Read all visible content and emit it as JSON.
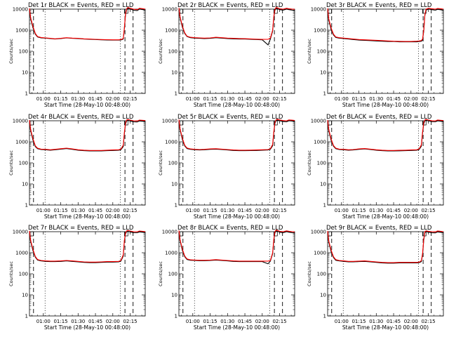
{
  "figure": {
    "xlabel": "Start Time (28-May-10 00:48:00)",
    "ylabel": "Counts/sec",
    "colors": {
      "events": "#000000",
      "lld": "#ff0000",
      "frame": "#000000"
    },
    "panel_titles": [
      "Det 1r BLACK = Events, RED = LLD",
      "Det 2r BLACK = Events, RED = LLD",
      "Det 3r BLACK = Events, RED = LLD",
      "Det 4r BLACK = Events, RED = LLD",
      "Det 5r BLACK = Events, RED = LLD",
      "Det 6r BLACK = Events, RED = LLD",
      "Det 7r BLACK = Events, RED = LLD",
      "Det 8r BLACK = Events, RED = LLD",
      "Det 9r BLACK = Events, RED = LLD"
    ]
  },
  "chart_data": {
    "type": "line",
    "layout": "3x3 grid",
    "x_tick_labels": [
      "01:00",
      "01:15",
      "01:30",
      "01:45",
      "02:00",
      "02:15"
    ],
    "x_tick_minutes": [
      60,
      75,
      90,
      105,
      120,
      135
    ],
    "xlim_minutes": [
      48,
      148
    ],
    "y_scale": "log",
    "ylim": [
      1,
      10000
    ],
    "y_tick_labels": [
      "1",
      "10",
      "100",
      "1000",
      "10000"
    ],
    "y_tick_values": [
      1,
      10,
      100,
      1000,
      10000
    ],
    "grid": false,
    "legend": "none",
    "series_names": [
      "Events",
      "LLD"
    ],
    "vertical_markers_minutes": {
      "dashed": [
        51.5,
        130.5,
        137.5
      ],
      "dotted": [
        61.5,
        126.5
      ]
    },
    "panels": [
      {
        "detector": "1r",
        "x": [
          48,
          49,
          51,
          53,
          55,
          58,
          62,
          66,
          70,
          75,
          80,
          85,
          90,
          95,
          100,
          105,
          110,
          115,
          120,
          125,
          127,
          129,
          130,
          131,
          132,
          133,
          135,
          138,
          141,
          143,
          146,
          148
        ],
        "events": [
          9000,
          3500,
          1300,
          650,
          480,
          430,
          420,
          400,
          380,
          400,
          430,
          410,
          400,
          380,
          370,
          360,
          350,
          345,
          340,
          340,
          345,
          380,
          1200,
          5500,
          9500,
          11000,
          10000,
          9000,
          8500,
          10000,
          9500,
          9000
        ],
        "lld": [
          11000,
          4000,
          1500,
          700,
          500,
          450,
          430,
          410,
          390,
          410,
          440,
          420,
          410,
          390,
          380,
          370,
          360,
          355,
          350,
          350,
          360,
          400,
          1300,
          6000,
          10500,
          12000,
          11000,
          10000,
          9500,
          11000,
          10500,
          10000
        ]
      },
      {
        "detector": "2r",
        "x": [
          48,
          49,
          51,
          53,
          55,
          58,
          62,
          66,
          70,
          75,
          80,
          85,
          90,
          95,
          100,
          105,
          110,
          115,
          120,
          125,
          127,
          129,
          130,
          131,
          132,
          133,
          135,
          138,
          141,
          143,
          146,
          148
        ],
        "events": [
          9500,
          4000,
          1400,
          700,
          500,
          440,
          420,
          410,
          400,
          410,
          440,
          420,
          400,
          390,
          380,
          380,
          370,
          360,
          350,
          200,
          380,
          900,
          4000,
          9000,
          11000,
          10500,
          9500,
          9000,
          10000,
          9500,
          9000,
          8800
        ],
        "lld": [
          11500,
          4500,
          1600,
          750,
          520,
          460,
          440,
          430,
          420,
          430,
          460,
          440,
          420,
          410,
          400,
          395,
          385,
          375,
          365,
          370,
          420,
          1000,
          4500,
          10000,
          12000,
          11500,
          10500,
          10000,
          11000,
          10500,
          10000,
          9800
        ]
      },
      {
        "detector": "3r",
        "x": [
          48,
          49,
          51,
          53,
          55,
          58,
          62,
          66,
          70,
          75,
          80,
          85,
          90,
          95,
          100,
          105,
          110,
          115,
          120,
          125,
          127,
          129,
          130,
          131,
          132,
          133,
          135,
          138,
          141,
          143,
          146,
          148
        ],
        "events": [
          9000,
          3000,
          1100,
          600,
          450,
          420,
          400,
          380,
          360,
          340,
          330,
          320,
          310,
          300,
          290,
          290,
          280,
          280,
          280,
          280,
          290,
          300,
          340,
          900,
          5000,
          9000,
          10000,
          9500,
          9000,
          9800,
          9300,
          9000
        ],
        "lld": [
          11000,
          3500,
          1300,
          650,
          480,
          440,
          420,
          400,
          380,
          360,
          350,
          340,
          330,
          320,
          310,
          300,
          295,
          290,
          290,
          300,
          310,
          320,
          380,
          1000,
          5500,
          10000,
          11000,
          10500,
          10000,
          10800,
          10300,
          10000
        ]
      },
      {
        "detector": "4r",
        "x": [
          48,
          49,
          51,
          53,
          55,
          58,
          62,
          66,
          70,
          75,
          80,
          85,
          90,
          95,
          100,
          105,
          110,
          115,
          120,
          125,
          127,
          129,
          130,
          131,
          132,
          133,
          135,
          138,
          141,
          143,
          146,
          148
        ],
        "events": [
          9000,
          3500,
          1200,
          600,
          470,
          430,
          420,
          400,
          420,
          450,
          480,
          440,
          400,
          380,
          370,
          370,
          370,
          380,
          390,
          400,
          420,
          600,
          2500,
          7000,
          10000,
          10500,
          9800,
          9000,
          8800,
          9800,
          9500,
          9200
        ],
        "lld": [
          11000,
          4000,
          1400,
          650,
          500,
          450,
          440,
          420,
          440,
          470,
          500,
          460,
          420,
          400,
          390,
          390,
          390,
          400,
          410,
          420,
          450,
          700,
          2800,
          7800,
          11000,
          11500,
          10800,
          10000,
          9800,
          10800,
          10500,
          10200
        ]
      },
      {
        "detector": "5r",
        "x": [
          48,
          49,
          51,
          53,
          55,
          58,
          62,
          66,
          70,
          75,
          80,
          85,
          90,
          95,
          100,
          105,
          110,
          115,
          120,
          125,
          127,
          129,
          130,
          131,
          132,
          133,
          135,
          138,
          141,
          143,
          146,
          148
        ],
        "events": [
          9500,
          3800,
          1300,
          640,
          480,
          440,
          420,
          410,
          420,
          440,
          450,
          430,
          410,
          390,
          380,
          380,
          385,
          390,
          400,
          410,
          440,
          650,
          2800,
          7500,
          10200,
          10800,
          10000,
          9200,
          9000,
          10000,
          9600,
          9300
        ],
        "lld": [
          11500,
          4300,
          1500,
          690,
          510,
          460,
          440,
          430,
          440,
          460,
          470,
          450,
          430,
          410,
          400,
          400,
          405,
          410,
          420,
          430,
          470,
          750,
          3100,
          8200,
          11200,
          11800,
          11000,
          10200,
          10000,
          11000,
          10600,
          10300
        ]
      },
      {
        "detector": "6r",
        "x": [
          48,
          49,
          51,
          53,
          55,
          58,
          62,
          66,
          70,
          75,
          80,
          85,
          90,
          95,
          100,
          105,
          110,
          115,
          120,
          125,
          127,
          129,
          130,
          131,
          132,
          133,
          135,
          138,
          141,
          143,
          146,
          148
        ],
        "events": [
          9000,
          3400,
          1200,
          620,
          470,
          430,
          420,
          400,
          410,
          440,
          460,
          430,
          400,
          380,
          370,
          370,
          375,
          380,
          390,
          400,
          430,
          620,
          2600,
          7200,
          10000,
          10600,
          9900,
          9100,
          8900,
          9900,
          9500,
          9200
        ],
        "lld": [
          11000,
          3900,
          1400,
          670,
          500,
          450,
          440,
          420,
          430,
          460,
          480,
          450,
          420,
          400,
          390,
          390,
          395,
          400,
          410,
          420,
          460,
          720,
          2900,
          8000,
          11000,
          11600,
          10900,
          10100,
          9900,
          10900,
          10500,
          10200
        ]
      },
      {
        "detector": "7r",
        "x": [
          48,
          49,
          51,
          53,
          55,
          58,
          62,
          66,
          70,
          75,
          80,
          85,
          90,
          95,
          100,
          105,
          110,
          115,
          120,
          125,
          127,
          129,
          130,
          131,
          132,
          133,
          135,
          138,
          141,
          143,
          146,
          148
        ],
        "events": [
          9000,
          3500,
          1250,
          620,
          450,
          410,
          390,
          380,
          380,
          390,
          410,
          390,
          370,
          350,
          340,
          340,
          350,
          360,
          360,
          370,
          400,
          700,
          3500,
          8000,
          10000,
          10500,
          9800,
          9000,
          8900,
          9800,
          9400,
          9100
        ],
        "lld": [
          11000,
          4000,
          1450,
          670,
          480,
          430,
          410,
          400,
          400,
          410,
          430,
          410,
          390,
          370,
          360,
          360,
          370,
          380,
          380,
          390,
          430,
          800,
          3900,
          8800,
          11000,
          11500,
          10800,
          10000,
          9900,
          10800,
          10400,
          10100
        ]
      },
      {
        "detector": "8r",
        "x": [
          48,
          49,
          51,
          53,
          55,
          58,
          62,
          66,
          70,
          75,
          80,
          85,
          90,
          95,
          100,
          105,
          110,
          115,
          120,
          125,
          127,
          129,
          130,
          131,
          132,
          133,
          135,
          138,
          141,
          143,
          146,
          148
        ],
        "events": [
          9500,
          3800,
          1300,
          650,
          480,
          440,
          430,
          420,
          420,
          430,
          450,
          430,
          410,
          390,
          380,
          380,
          380,
          380,
          380,
          300,
          400,
          900,
          4000,
          9000,
          11000,
          10500,
          9500,
          9000,
          10000,
          9500,
          9000,
          8800
        ],
        "lld": [
          11500,
          4300,
          1500,
          700,
          510,
          460,
          450,
          440,
          440,
          450,
          470,
          450,
          430,
          410,
          400,
          400,
          400,
          400,
          400,
          400,
          430,
          1000,
          4500,
          10000,
          12000,
          11500,
          10500,
          10000,
          11000,
          10500,
          10000,
          9800
        ]
      },
      {
        "detector": "9r",
        "x": [
          48,
          49,
          51,
          53,
          55,
          58,
          62,
          66,
          70,
          75,
          80,
          85,
          90,
          95,
          100,
          105,
          110,
          115,
          120,
          125,
          127,
          129,
          130,
          131,
          132,
          133,
          135,
          138,
          141,
          143,
          146,
          148
        ],
        "events": [
          9000,
          3200,
          1150,
          600,
          440,
          410,
          390,
          370,
          370,
          380,
          390,
          370,
          350,
          330,
          320,
          320,
          330,
          330,
          330,
          330,
          340,
          380,
          800,
          4000,
          9000,
          10000,
          9500,
          9000,
          8800,
          9800,
          9300,
          9000
        ],
        "lld": [
          11000,
          3700,
          1350,
          650,
          470,
          430,
          410,
          390,
          390,
          400,
          410,
          390,
          370,
          350,
          340,
          340,
          350,
          350,
          350,
          350,
          360,
          420,
          900,
          4500,
          10000,
          11000,
          10500,
          10000,
          9800,
          10800,
          10300,
          10000
        ]
      }
    ]
  }
}
